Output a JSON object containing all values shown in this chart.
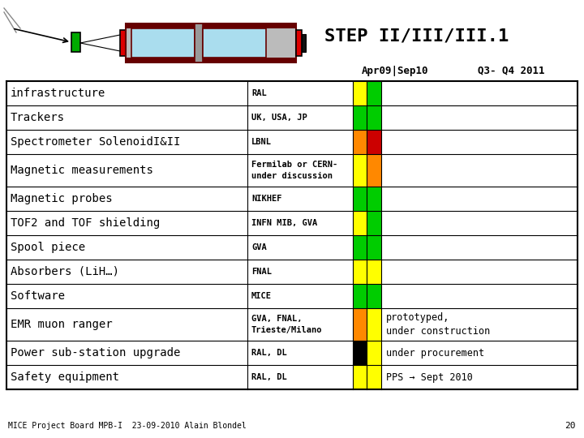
{
  "title": "STEP II/III/III.1",
  "col1_header": "Apr09|Sep10",
  "col2_header": "Q3- Q4 2011",
  "rows": [
    {
      "label": "infrastructure",
      "resp": "RAL",
      "left_color": "#ffff00",
      "right_color": "#00cc00",
      "note": ""
    },
    {
      "label": "Trackers",
      "resp": "UK, USA, JP",
      "left_color": "#00cc00",
      "right_color": "#00cc00",
      "note": ""
    },
    {
      "label": "Spectrometer SolenoidI&II",
      "resp": "LBNL",
      "left_color": "#ff8800",
      "right_color": "#cc0000",
      "note": ""
    },
    {
      "label": "Magnetic measurements",
      "resp": "Fermilab or CERN-\nunder discussion",
      "left_color": "#ffff00",
      "right_color": "#ff8800",
      "note": ""
    },
    {
      "label": "Magnetic probes",
      "resp": "NIKHEF",
      "left_color": "#00cc00",
      "right_color": "#00cc00",
      "note": ""
    },
    {
      "label": "TOF2 and TOF shielding",
      "resp": "INFN MIB, GVA",
      "left_color": "#ffff00",
      "right_color": "#00cc00",
      "note": ""
    },
    {
      "label": "Spool piece",
      "resp": "GVA",
      "left_color": "#00cc00",
      "right_color": "#00cc00",
      "note": ""
    },
    {
      "label": "Absorbers (LiH…)",
      "resp": "FNAL",
      "left_color": "#ffff00",
      "right_color": "#ffff00",
      "note": ""
    },
    {
      "label": "Software",
      "resp": "MICE",
      "left_color": "#00cc00",
      "right_color": "#00cc00",
      "note": ""
    },
    {
      "label": "EMR muon ranger",
      "resp": "GVA, FNAL,\nTrieste/Milano",
      "left_color": "#ff8800",
      "right_color": "#ffff00",
      "note": "prototyped,\nunder construction"
    },
    {
      "label": "Power sub-station upgrade",
      "resp": "RAL, DL",
      "left_color": "#000000",
      "right_color": "#ffff00",
      "note": "under procurement"
    },
    {
      "label": "Safety equipment",
      "resp": "RAL, DL",
      "left_color": "#ffff00",
      "right_color": "#ffff00",
      "note": "PPS → Sept 2010"
    }
  ],
  "footer": "MICE Project Board MPB-I  23-09-2010 Alain Blondel",
  "page_num": "20",
  "bg_color": "#ffffff"
}
